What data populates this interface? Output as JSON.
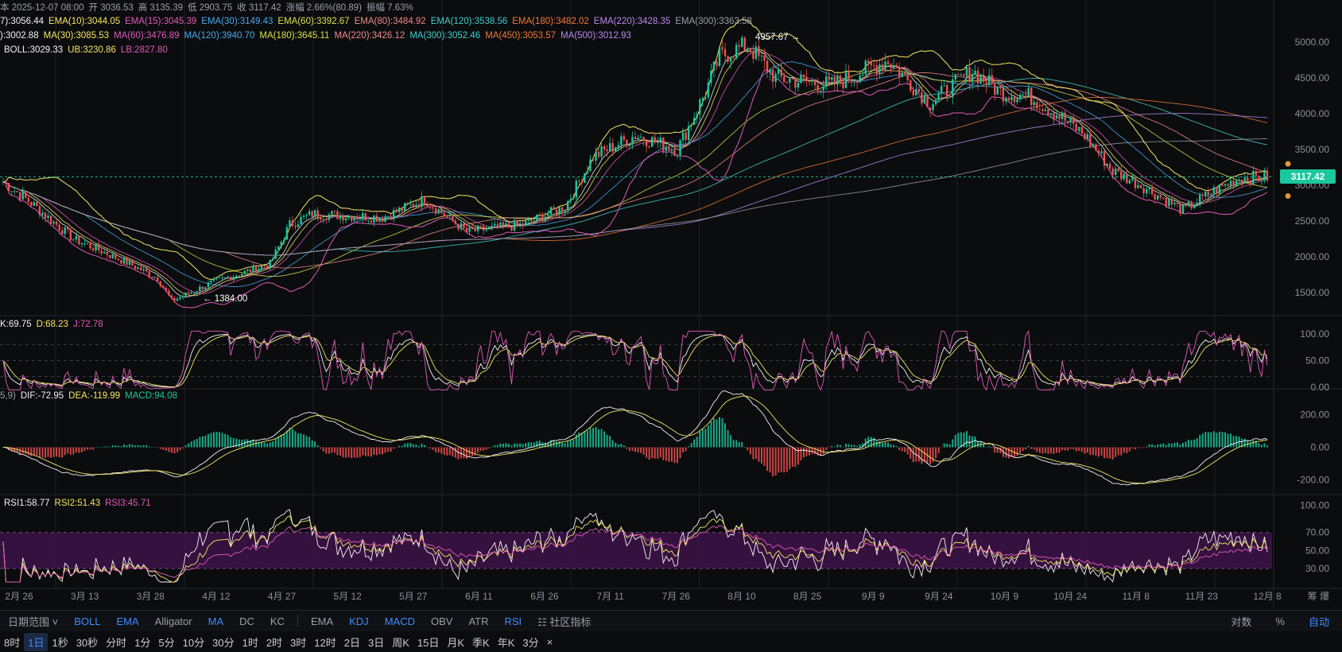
{
  "header": {
    "ohlc": [
      {
        "k": "date",
        "t": "本 2025-12-07 08:00",
        "c": "#9aa0a8"
      },
      {
        "k": "open",
        "t": "开 3036.53",
        "c": "#9aa0a8"
      },
      {
        "k": "high",
        "t": "高 3135.39",
        "c": "#9aa0a8"
      },
      {
        "k": "low",
        "t": "低 2903.75",
        "c": "#9aa0a8"
      },
      {
        "k": "close",
        "t": "收 3117.42",
        "c": "#9aa0a8"
      },
      {
        "k": "change",
        "t": "涨幅 2.66%(80.89)",
        "c": "#9aa0a8"
      },
      {
        "k": "amp",
        "t": "振幅 7.63%",
        "c": "#9aa0a8"
      }
    ]
  },
  "legends": {
    "ema": [
      {
        "t": "7):3056.44",
        "c": "#f2f2f2"
      },
      {
        "t": "EMA(10):3044.05",
        "c": "#f5e663"
      },
      {
        "t": "EMA(15):3045.39",
        "c": "#e05ab8"
      },
      {
        "t": "EMA(30):3149.43",
        "c": "#4aa8e8"
      },
      {
        "t": "EMA(60):3392.67",
        "c": "#d8e04c"
      },
      {
        "t": "EMA(80):3484.92",
        "c": "#f08a8a"
      },
      {
        "t": "EMA(120):3538.56",
        "c": "#3fd0d0"
      },
      {
        "t": "EMA(180):3482.02",
        "c": "#f07a3a"
      },
      {
        "t": "EMA(220):3428.35",
        "c": "#b88af0"
      },
      {
        "t": "EMA(300):3363.58",
        "c": "#9aa0a8"
      }
    ],
    "ma": [
      {
        "t": "):3002.88",
        "c": "#f2f2f2"
      },
      {
        "t": "MA(30):3085.53",
        "c": "#f5e663"
      },
      {
        "t": "MA(60):3476.89",
        "c": "#e05ab8"
      },
      {
        "t": "MA(120):3940.70",
        "c": "#4aa8e8"
      },
      {
        "t": "MA(180):3645.11",
        "c": "#d8e04c"
      },
      {
        "t": "MA(220):3426.12",
        "c": "#f08a8a"
      },
      {
        "t": "MA(300):3052.46",
        "c": "#3fd0d0"
      },
      {
        "t": "MA(450):3053.57",
        "c": "#f07a3a"
      },
      {
        "t": "MA(500):3012.93",
        "c": "#b88af0"
      }
    ],
    "boll": [
      {
        "t": "BOLL:3029.33",
        "c": "#f2f2f2"
      },
      {
        "t": "UB:3230.86",
        "c": "#f5e663"
      },
      {
        "t": "LB:2827.80",
        "c": "#e05ab8"
      }
    ],
    "kdj": [
      {
        "t": "K:69.75",
        "c": "#f2f2f2"
      },
      {
        "t": "D:68.23",
        "c": "#f5e663"
      },
      {
        "t": "J:72.78",
        "c": "#e05ab8"
      }
    ],
    "macd": [
      {
        "t": "5,9)",
        "c": "#9aa0a8"
      },
      {
        "t": "DIF:-72.95",
        "c": "#f2f2f2"
      },
      {
        "t": "DEA:-119.99",
        "c": "#f5e663"
      },
      {
        "t": "MACD:94.08",
        "c": "#1bc79d"
      }
    ],
    "rsi": [
      {
        "t": "RSI1:58.77",
        "c": "#f2f2f2"
      },
      {
        "t": "RSI2:51.43",
        "c": "#f5e663"
      },
      {
        "t": "RSI3:45.71",
        "c": "#e05ab8"
      }
    ]
  },
  "price_axis": [
    "5000.00",
    "4500.00",
    "4000.00",
    "3500.00",
    "3000.00",
    "2500.00",
    "2000.00",
    "1500.00"
  ],
  "kdj_axis": [
    "100.00",
    "50.00",
    "0.00"
  ],
  "macd_axis": [
    "200.00",
    "0.00",
    "-200.00"
  ],
  "rsi_axis": [
    "100.00",
    "70.00",
    "50.00",
    "30.00"
  ],
  "time_axis": [
    "2月 26",
    "3月 13",
    "3月 28",
    "4月 12",
    "4月 27",
    "5月 12",
    "5月 27",
    "6月 11",
    "6月 26",
    "7月 11",
    "7月 26",
    "8月 10",
    "8月 25",
    "9月 9",
    "9月 24",
    "10月 9",
    "10月 24",
    "11月 8",
    "11月 23",
    "12月 8"
  ],
  "time_axis_right": "筹  爆",
  "last_price": "3117.42",
  "high_marker": "4957.67 →",
  "low_marker": "← 1384.00",
  "series": {
    "keypoints": [
      [
        0,
        3050
      ],
      [
        10,
        2750
      ],
      [
        25,
        2250
      ],
      [
        35,
        2080
      ],
      [
        45,
        1900
      ],
      [
        55,
        1700
      ],
      [
        60,
        1384
      ],
      [
        75,
        1650
      ],
      [
        95,
        1900
      ],
      [
        102,
        2450
      ],
      [
        110,
        2600
      ],
      [
        135,
        2550
      ],
      [
        150,
        2800
      ],
      [
        165,
        2350
      ],
      [
        185,
        2450
      ],
      [
        200,
        2700
      ],
      [
        210,
        3400
      ],
      [
        225,
        3700
      ],
      [
        240,
        3500
      ],
      [
        250,
        4300
      ],
      [
        255,
        4800
      ],
      [
        265,
        4957
      ],
      [
        275,
        4500
      ],
      [
        295,
        4400
      ],
      [
        315,
        4750
      ],
      [
        330,
        4150
      ],
      [
        345,
        4600
      ],
      [
        355,
        4300
      ],
      [
        365,
        4250
      ],
      [
        375,
        4000
      ],
      [
        385,
        3700
      ],
      [
        395,
        3200
      ],
      [
        405,
        3000
      ],
      [
        420,
        2650
      ],
      [
        430,
        2900
      ],
      [
        440,
        3100
      ],
      [
        450,
        3117
      ]
    ],
    "count": 451
  },
  "toolbar": {
    "left_items": [
      {
        "t": "日期范围 ˅",
        "on": false
      },
      {
        "t": "BOLL",
        "on": true
      },
      {
        "t": "EMA",
        "on": true
      },
      {
        "t": "Alligator",
        "on": false
      },
      {
        "t": "MA",
        "on": true
      },
      {
        "t": "DC",
        "on": false
      },
      {
        "t": "KC",
        "on": false
      }
    ],
    "right_items": [
      {
        "t": "EMA",
        "on": false
      },
      {
        "t": "KDJ",
        "on": true
      },
      {
        "t": "MACD",
        "on": true
      },
      {
        "t": "OBV",
        "on": false
      },
      {
        "t": "ATR",
        "on": false
      },
      {
        "t": "RSI",
        "on": true
      },
      {
        "t": "☷ 社区指标",
        "on": false
      }
    ],
    "far_right": [
      {
        "t": "对数",
        "on": false
      },
      {
        "t": "%",
        "on": false
      },
      {
        "t": "自动",
        "on": true
      }
    ]
  },
  "timeframes": [
    {
      "t": "8时",
      "on": false
    },
    {
      "t": "1日",
      "on": true
    },
    {
      "t": "1秒",
      "on": false
    },
    {
      "t": "30秒",
      "on": false
    },
    {
      "t": "分时",
      "on": false
    },
    {
      "t": "1分",
      "on": false
    },
    {
      "t": "5分",
      "on": false
    },
    {
      "t": "10分",
      "on": false
    },
    {
      "t": "30分",
      "on": false
    },
    {
      "t": "1时",
      "on": false
    },
    {
      "t": "2时",
      "on": false
    },
    {
      "t": "3时",
      "on": false
    },
    {
      "t": "12时",
      "on": false
    },
    {
      "t": "2日",
      "on": false
    },
    {
      "t": "3日",
      "on": false
    },
    {
      "t": "周K",
      "on": false
    },
    {
      "t": "15日",
      "on": false
    },
    {
      "t": "月K",
      "on": false
    },
    {
      "t": "季K",
      "on": false
    },
    {
      "t": "年K",
      "on": false
    },
    {
      "t": "3分",
      "on": false
    },
    {
      "t": "×",
      "on": false
    }
  ],
  "colors": {
    "up": "#1bc79d",
    "down": "#f0504f",
    "grid": "#1c1f24",
    "rsi_band": "#3a1245"
  }
}
